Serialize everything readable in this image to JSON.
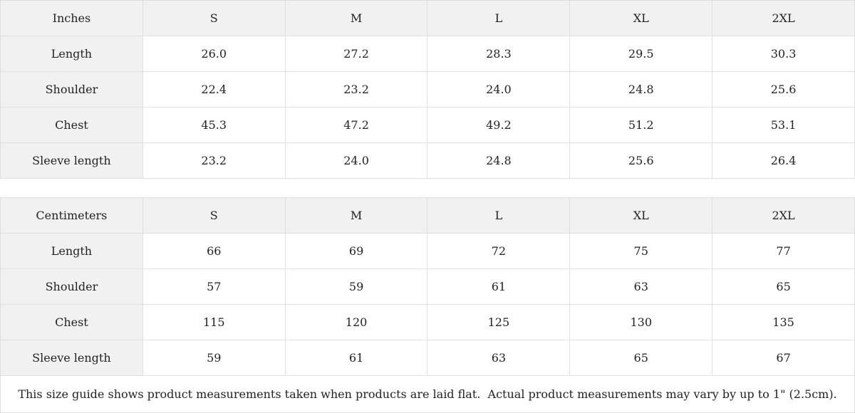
{
  "chart_data": [
    {
      "type": "table",
      "title": "Inches",
      "columns": [
        "Inches",
        "S",
        "M",
        "L",
        "XL",
        "2XL"
      ],
      "rows": [
        [
          "Length",
          "26.0",
          "27.2",
          "28.3",
          "29.5",
          "30.3"
        ],
        [
          "Shoulder",
          "22.4",
          "23.2",
          "24.0",
          "24.8",
          "25.6"
        ],
        [
          "Chest",
          "45.3",
          "47.2",
          "49.2",
          "51.2",
          "53.1"
        ],
        [
          "Sleeve length",
          "23.2",
          "24.0",
          "24.8",
          "25.6",
          "26.4"
        ]
      ]
    },
    {
      "type": "table",
      "title": "Centimeters",
      "columns": [
        "Centimeters",
        "S",
        "M",
        "L",
        "XL",
        "2XL"
      ],
      "rows": [
        [
          "Length",
          "66",
          "69",
          "72",
          "75",
          "77"
        ],
        [
          "Shoulder",
          "57",
          "59",
          "61",
          "63",
          "65"
        ],
        [
          "Chest",
          "115",
          "120",
          "125",
          "130",
          "135"
        ],
        [
          "Sleeve length",
          "59",
          "61",
          "63",
          "65",
          "67"
        ]
      ]
    }
  ],
  "footer": {
    "note": "This size guide shows product measurements taken when products are laid flat.  Actual product measurements may vary by up to 1\" (2.5cm)."
  },
  "colors": {
    "cell_shaded_bg": "#f1f1f1",
    "border": "#e0e0e0",
    "text": "#222222",
    "background": "#ffffff"
  }
}
